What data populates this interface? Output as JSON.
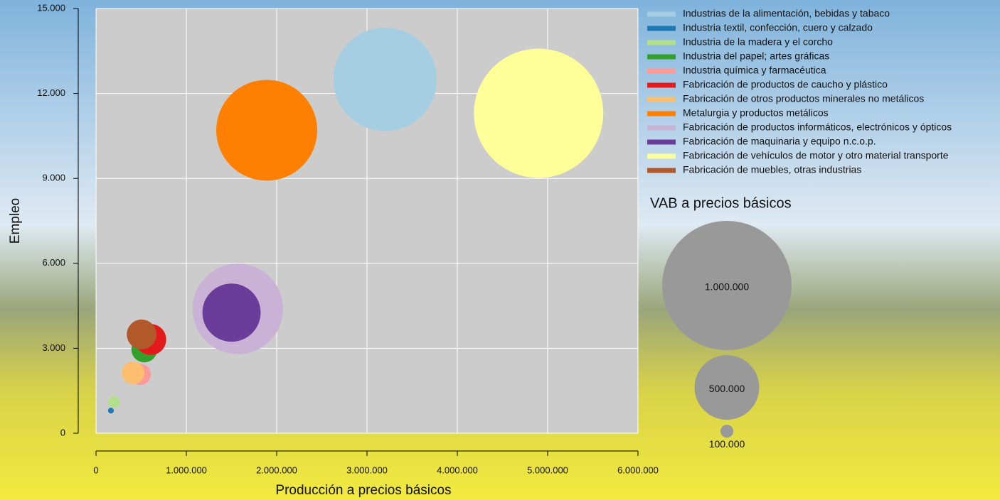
{
  "chart_data": {
    "type": "bubble",
    "xlabel": "Producción a precios básicos",
    "ylabel": "Empleo",
    "xlim": [
      0,
      6000000
    ],
    "ylim": [
      0,
      15000
    ],
    "xticks": [
      0,
      {
        "value": 1000000,
        "label": "1.000.000"
      },
      {
        "value": 2000000,
        "label": "2.000.000"
      },
      {
        "value": 3000000,
        "label": "3.000.000"
      },
      {
        "value": 4000000,
        "label": "4.000.000"
      },
      {
        "value": 5000000,
        "label": "5.000.000"
      },
      {
        "value": 6000000,
        "label": "6.000.000"
      }
    ],
    "yticks": [
      0,
      {
        "value": 3000,
        "label": "3.000"
      },
      {
        "value": 6000,
        "label": "6.000"
      },
      {
        "value": 9000,
        "label": "9.000"
      },
      {
        "value": 12000,
        "label": "12.000"
      },
      {
        "value": 15000,
        "label": "15.000"
      }
    ],
    "grid": true,
    "legend": "right",
    "series": [
      {
        "name": "Industrias de la alimentación, bebidas y tabaco",
        "color": "#a6cee3",
        "x": [
          3200000
        ],
        "values": [
          12500
        ],
        "sizes": [
          800000
        ]
      },
      {
        "name": "Industria textil, confección, cuero y calzado",
        "color": "#1f78b4",
        "x": [
          165000
        ],
        "values": [
          800
        ],
        "sizes": [
          45000
        ]
      },
      {
        "name": "Industria de la madera y el corcho",
        "color": "#b2df8a",
        "x": [
          200000
        ],
        "values": [
          1100
        ],
        "sizes": [
          90000
        ]
      },
      {
        "name": "Industria del papel; artes gráficas",
        "color": "#33a02c",
        "x": [
          535000
        ],
        "values": [
          2960
        ],
        "sizes": [
          200000
        ]
      },
      {
        "name": "Industria química y farmacéutica",
        "color": "#fb9a99",
        "x": [
          490000
        ],
        "values": [
          2080
        ],
        "sizes": [
          165000
        ]
      },
      {
        "name": "Fabricación de productos de caucho y plástico",
        "color": "#e31a1c",
        "x": [
          605000
        ],
        "values": [
          3310
        ],
        "sizes": [
          240000
        ]
      },
      {
        "name": "Fabricación de otros productos minerales no metálicos",
        "color": "#fdbf6f",
        "x": [
          410000
        ],
        "values": [
          2130
        ],
        "sizes": [
          175000
        ]
      },
      {
        "name": "Metalurgia y productos metálicos",
        "color": "#ff7f00",
        "x": [
          1890000
        ],
        "values": [
          10700
        ],
        "sizes": [
          780000
        ]
      },
      {
        "name": "Fabricación de productos informáticos, electrónicos y ópticos",
        "color": "#cab2d6",
        "x": [
          1570000
        ],
        "values": [
          4390
        ],
        "sizes": [
          700000
        ]
      },
      {
        "name": "Fabricación de maquinaria y equipo n.c.o.p.",
        "color": "#6a3d9a",
        "x": [
          1500000
        ],
        "values": [
          4260
        ],
        "sizes": [
          450000
        ]
      },
      {
        "name": "Fabricación de vehículos de motor y otro material transporte",
        "color": "#ffff99",
        "x": [
          4900000
        ],
        "values": [
          11300
        ],
        "sizes": [
          1000000
        ]
      },
      {
        "name": "Fabricación de muebles, otras industrias",
        "color": "#b15928",
        "x": [
          505000
        ],
        "values": [
          3490
        ],
        "sizes": [
          230000
        ]
      }
    ],
    "size_legend": {
      "title": "VAB a precios básicos",
      "color": "#999999",
      "values": [
        {
          "value": 1000000,
          "label": "1.000.000"
        },
        {
          "value": 500000,
          "label": "500.000"
        },
        {
          "value": 100000,
          "label": "100.000"
        }
      ]
    }
  }
}
